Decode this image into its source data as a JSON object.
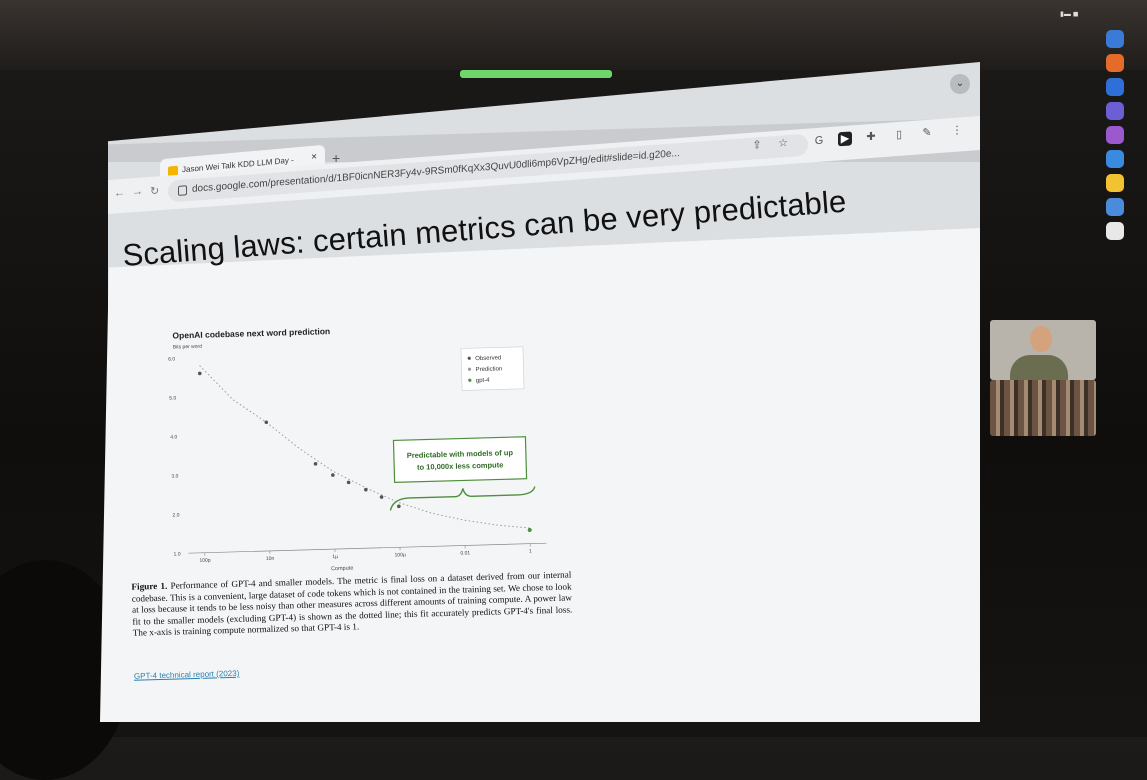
{
  "tab": {
    "title": "Jason Wei Talk KDD LLM Day - ",
    "close_icon": "close-icon",
    "new_tab": "+"
  },
  "addressbar": {
    "url": "docs.google.com/presentation/d/1BF0icnNER3Fy4v-9RSm0fKqXx3QuvU0dli6mp6VpZHg/edit#slide=id.g20e..."
  },
  "slide": {
    "title": "Scaling laws: certain metrics can be very predictable",
    "chart_title": "OpenAI codebase next word prediction",
    "caption_bold": "Figure 1.",
    "caption": "Performance of GPT-4 and smaller models. The metric is final loss on a dataset derived from our internal codebase. This is a convenient, large dataset of code tokens which is not contained in the training set. We chose to look at loss because it tends to be less noisy than other measures across different amounts of training compute. A power law fit to the smaller models (excluding GPT-4) is shown as the dotted line; this fit accurately predicts GPT-4's final loss. The x-axis is training compute normalized so that GPT-4 is 1.",
    "link": "GPT-4 technical report (2023)"
  },
  "chart_data": {
    "type": "scatter",
    "title": "OpenAI codebase next word prediction",
    "ylabel": "Bits per word",
    "xlabel": "Compute",
    "x_scale": "log",
    "xticks": [
      "100p",
      "10n",
      "1µ",
      "100µ",
      "0.01",
      "1"
    ],
    "yticks": [
      "1.0",
      "2.0",
      "3.0",
      "4.0",
      "5.0",
      "6.0"
    ],
    "ylim": [
      1.0,
      6.0
    ],
    "series": [
      {
        "name": "Observed",
        "color": "#555555",
        "x": [
          1e-10,
          1e-08,
          3e-07,
          1e-06,
          3e-06,
          1e-05,
          3e-05,
          0.0001
        ],
        "y": [
          5.6,
          4.3,
          3.2,
          2.9,
          2.7,
          2.5,
          2.3,
          2.05
        ]
      },
      {
        "name": "Prediction",
        "color": "#9a9a9a",
        "x": [
          1e-10,
          1e-09,
          1e-08,
          1e-07,
          1e-06,
          1e-05,
          0.0001,
          0.001,
          0.01,
          0.1,
          1
        ],
        "y": [
          5.8,
          4.9,
          4.3,
          3.6,
          3.0,
          2.55,
          2.15,
          1.85,
          1.65,
          1.5,
          1.4
        ]
      },
      {
        "name": "gpt-4",
        "color": "#4d8f3a",
        "x": [
          1
        ],
        "y": [
          1.35
        ]
      }
    ],
    "legend": "top-right",
    "annotation": "Predictable with models of up to 10,000x less compute"
  },
  "colors": {
    "accent_green": "#4d8f3a",
    "stage_light": "#6fd66b"
  }
}
